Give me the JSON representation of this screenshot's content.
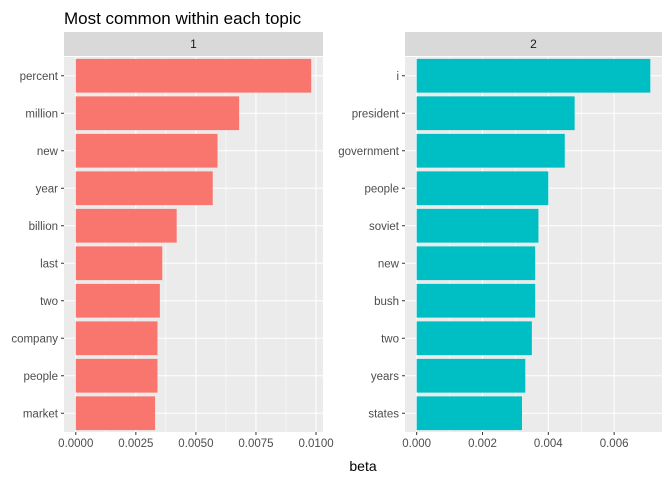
{
  "chart_data": {
    "type": "bar",
    "title": "Most common within each topic",
    "xlabel": "beta",
    "ylabel": "",
    "orientation": "horizontal",
    "grid": true,
    "legend": "none",
    "panels": [
      {
        "strip": "1",
        "color": "#F8766D",
        "categories": [
          "percent",
          "million",
          "new",
          "year",
          "billion",
          "last",
          "two",
          "company",
          "people",
          "market"
        ],
        "values": [
          0.0098,
          0.0068,
          0.0059,
          0.0057,
          0.0042,
          0.0036,
          0.0035,
          0.0034,
          0.0034,
          0.0033
        ],
        "xlim": [
          -0.00049,
          0.01029
        ],
        "ticks": [
          0,
          0.0025,
          0.005,
          0.0075,
          0.01
        ],
        "tick_labels": [
          "0.0000",
          "0.0025",
          "0.0050",
          "0.0075",
          "0.0100"
        ]
      },
      {
        "strip": "2",
        "color": "#00BFC4",
        "categories": [
          "i",
          "president",
          "government",
          "people",
          "soviet",
          "new",
          "bush",
          "two",
          "years",
          "states"
        ],
        "values": [
          0.0071,
          0.0048,
          0.0045,
          0.004,
          0.0037,
          0.0036,
          0.0036,
          0.0035,
          0.0033,
          0.0032
        ],
        "xlim": [
          -0.000355,
          0.007455
        ],
        "ticks": [
          0,
          0.002,
          0.004,
          0.006
        ],
        "tick_labels": [
          "0.000",
          "0.002",
          "0.004",
          "0.006"
        ]
      }
    ]
  }
}
